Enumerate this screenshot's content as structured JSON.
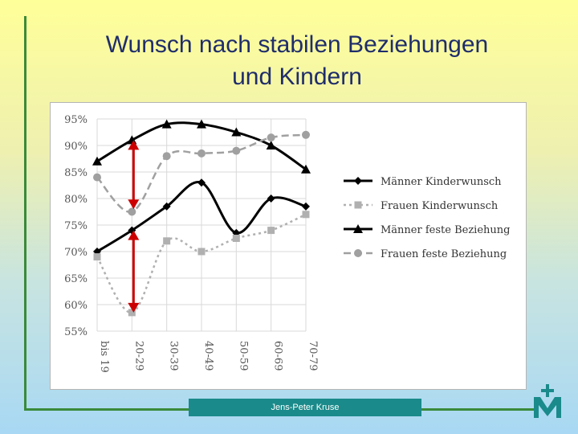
{
  "slide": {
    "title": "Wunsch nach stabilen Beziehungen\nund Kindern",
    "footer": "Jens-Peter Kruse",
    "logo_icon": "maltese-cross-m-logo"
  },
  "colors": {
    "accent_line": "#3a8a3a",
    "footer_bg": "#1a8a8a",
    "title": "#1f2d6b",
    "arrow": "#cc0000"
  },
  "chart_data": {
    "type": "line",
    "categories": [
      "bis 19",
      "20-29",
      "30-39",
      "40-49",
      "50-59",
      "60-69",
      "70-79"
    ],
    "ylim": [
      55,
      95
    ],
    "yticks": [
      "95%",
      "90%",
      "85%",
      "80%",
      "75%",
      "70%",
      "65%",
      "60%",
      "55%"
    ],
    "grid": true,
    "legend_position": "right",
    "series": [
      {
        "name": "Männer Kinderwunsch",
        "values": [
          70,
          74,
          78.5,
          83,
          73.5,
          80,
          78.5
        ],
        "color": "#000000",
        "dash": "",
        "marker": "diamond",
        "width": 3
      },
      {
        "name": "Frauen Kinderwunsch",
        "values": [
          69,
          58.5,
          72,
          70,
          72.5,
          74,
          77
        ],
        "color": "#b0b0b0",
        "dash": "3,4",
        "marker": "square",
        "width": 2.5
      },
      {
        "name": "Männer feste Beziehung",
        "values": [
          87,
          91,
          94,
          94,
          92.5,
          90,
          85.5
        ],
        "color": "#000000",
        "dash": "",
        "marker": "triangle",
        "width": 3
      },
      {
        "name": "Frauen feste Beziehung",
        "values": [
          84,
          77.5,
          88,
          88.5,
          89,
          91.5,
          92
        ],
        "color": "#a0a0a0",
        "dash": "9,5",
        "marker": "circle",
        "width": 2.5
      }
    ],
    "annotations": [
      {
        "type": "double-arrow",
        "category": "20-29",
        "from": 91,
        "to": 78
      },
      {
        "type": "double-arrow",
        "category": "20-29",
        "from": 74,
        "to": 58.5
      }
    ]
  }
}
